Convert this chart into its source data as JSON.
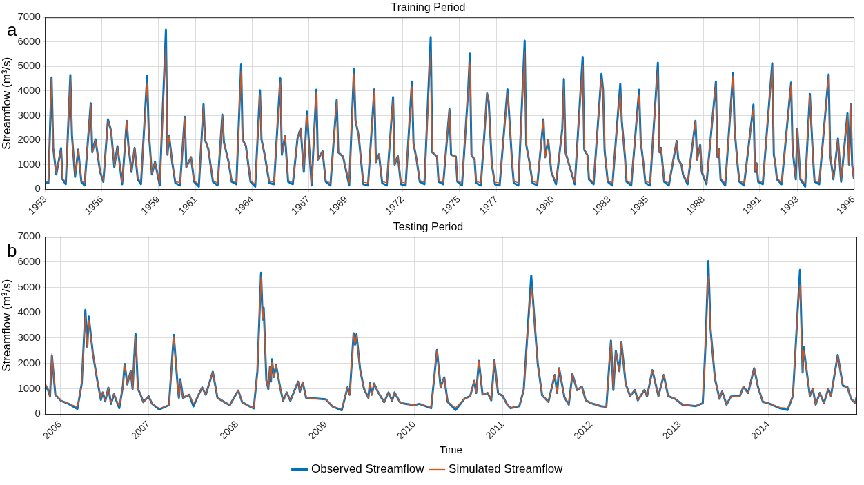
{
  "chart_data": [
    {
      "type": "line",
      "title": "Training Period",
      "ylabel": "Streamflow (m³/s)",
      "annotations": [
        "a"
      ],
      "grid": true,
      "legend": false,
      "line_style": "solid",
      "xlim": [
        "1953-01",
        "1996-01"
      ],
      "ylim": [
        0,
        7000
      ],
      "yticks": [
        0,
        1000,
        2000,
        3000,
        4000,
        5000,
        6000,
        7000
      ],
      "xticks": [
        {
          "value": "1953-01",
          "label": "1953"
        },
        {
          "value": "1956-01",
          "label": "1956"
        },
        {
          "value": "1959-01",
          "label": "1959"
        },
        {
          "value": "1961-01",
          "label": "1961"
        },
        {
          "value": "1964-01",
          "label": "1964"
        },
        {
          "value": "1967-01",
          "label": "1967"
        },
        {
          "value": "1969-01",
          "label": "1969"
        },
        {
          "value": "1972-01",
          "label": "1972"
        },
        {
          "value": "1975-01",
          "label": "1975"
        },
        {
          "value": "1977-01",
          "label": "1977"
        },
        {
          "value": "1980-01",
          "label": "1980"
        },
        {
          "value": "1983-01",
          "label": "1983"
        },
        {
          "value": "1985-01",
          "label": "1985"
        },
        {
          "value": "1988-01",
          "label": "1988"
        },
        {
          "value": "1991-01",
          "label": "1991"
        },
        {
          "value": "1993-01",
          "label": "1993"
        },
        {
          "value": "1996-01",
          "label": "1996"
        }
      ],
      "x": [
        "1953-01",
        "1953-03",
        "1953-05",
        "1953-06",
        "1953-08",
        "1953-11",
        "1953-12",
        "1954-02",
        "1954-05",
        "1954-06",
        "1954-08",
        "1954-10",
        "1954-12",
        "1955-02",
        "1955-06",
        "1955-07",
        "1955-09",
        "1955-12",
        "1956-02",
        "1956-05",
        "1956-07",
        "1956-09",
        "1956-11",
        "1957-02",
        "1957-05",
        "1957-06",
        "1957-08",
        "1957-10",
        "1957-12",
        "1958-02",
        "1958-06",
        "1958-07",
        "1958-09",
        "1958-11",
        "1959-02",
        "1959-06",
        "1959-07",
        "1959-08",
        "1959-10",
        "1959-12",
        "1960-03",
        "1960-06",
        "1960-07",
        "1960-10",
        "1960-12",
        "1961-03",
        "1961-06",
        "1961-07",
        "1961-09",
        "1961-12",
        "1962-03",
        "1962-06",
        "1962-07",
        "1962-10",
        "1962-12",
        "1963-03",
        "1963-06",
        "1963-07",
        "1963-09",
        "1963-12",
        "1964-03",
        "1964-06",
        "1964-07",
        "1964-09",
        "1964-12",
        "1965-03",
        "1965-07",
        "1965-08",
        "1965-10",
        "1965-12",
        "1966-03",
        "1966-06",
        "1966-08",
        "1966-10",
        "1966-12",
        "1967-03",
        "1967-06",
        "1967-07",
        "1967-10",
        "1967-12",
        "1968-03",
        "1968-07",
        "1968-08",
        "1968-11",
        "1969-03",
        "1969-06",
        "1969-07",
        "1969-09",
        "1969-12",
        "1970-03",
        "1970-07",
        "1970-08",
        "1970-10",
        "1970-12",
        "1971-03",
        "1971-07",
        "1971-08",
        "1971-10",
        "1971-12",
        "1972-03",
        "1972-07",
        "1972-08",
        "1972-10",
        "1972-12",
        "1973-03",
        "1973-07",
        "1973-08",
        "1973-11",
        "1973-12",
        "1974-03",
        "1974-07",
        "1974-08",
        "1974-11",
        "1974-12",
        "1975-03",
        "1975-07",
        "1975-08",
        "1975-09",
        "1975-11",
        "1975-12",
        "1976-03",
        "1976-07",
        "1976-08",
        "1976-10",
        "1976-12",
        "1977-03",
        "1977-08",
        "1977-09",
        "1977-11",
        "1977-12",
        "1978-03",
        "1978-07",
        "1978-08",
        "1978-10",
        "1978-12",
        "1979-03",
        "1979-07",
        "1979-08",
        "1979-10",
        "1979-12",
        "1980-03",
        "1980-07",
        "1980-08",
        "1980-09",
        "1980-12",
        "1981-03",
        "1981-08",
        "1981-09",
        "1981-11",
        "1981-12",
        "1982-03",
        "1982-08",
        "1982-09",
        "1982-10",
        "1982-12",
        "1983-03",
        "1983-08",
        "1983-09",
        "1983-11",
        "1983-12",
        "1984-03",
        "1984-08",
        "1984-09",
        "1984-11",
        "1984-12",
        "1985-03",
        "1985-08",
        "1985-09",
        "1985-10",
        "1985-12",
        "1986-03",
        "1986-08",
        "1986-09",
        "1986-11",
        "1986-12",
        "1987-03",
        "1987-08",
        "1987-09",
        "1987-11",
        "1987-12",
        "1988-03",
        "1988-09",
        "1988-10",
        "1988-11",
        "1988-12",
        "1989-03",
        "1989-08",
        "1989-09",
        "1989-11",
        "1989-12",
        "1990-03",
        "1990-09",
        "1990-10",
        "1990-11",
        "1990-12",
        "1991-03",
        "1991-09",
        "1991-10",
        "1991-11",
        "1991-12",
        "1992-03",
        "1992-09",
        "1992-10",
        "1992-12",
        "1993-01",
        "1993-03",
        "1993-06",
        "1993-09",
        "1993-10",
        "1993-11",
        "1993-12",
        "1994-03",
        "1994-09",
        "1994-10",
        "1994-12",
        "1995-03",
        "1995-05",
        "1995-09",
        "1995-10",
        "1995-11",
        "1995-12",
        "1996-01"
      ],
      "series": [
        {
          "color": "#0072bd",
          "values": [
            280,
            250,
            4550,
            1700,
            600,
            1670,
            400,
            200,
            4650,
            2200,
            500,
            1610,
            300,
            150,
            3500,
            1500,
            2030,
            700,
            300,
            2840,
            2370,
            900,
            1750,
            200,
            2780,
            1800,
            700,
            1680,
            400,
            200,
            4610,
            2400,
            600,
            1110,
            150,
            6500,
            1400,
            2180,
            1100,
            250,
            150,
            2950,
            900,
            1300,
            300,
            100,
            3460,
            2000,
            1640,
            300,
            150,
            3040,
            1920,
            1100,
            300,
            200,
            5080,
            2000,
            1770,
            300,
            100,
            4030,
            2020,
            1400,
            250,
            200,
            4520,
            1400,
            2170,
            300,
            200,
            2080,
            2470,
            700,
            3160,
            150,
            4050,
            1200,
            1540,
            300,
            150,
            3630,
            1500,
            1330,
            150,
            4890,
            2800,
            2170,
            200,
            150,
            4070,
            1100,
            1420,
            250,
            150,
            3750,
            1000,
            1350,
            200,
            150,
            4380,
            1860,
            1200,
            300,
            200,
            6200,
            1500,
            1330,
            300,
            200,
            3260,
            1400,
            1330,
            300,
            150,
            4090,
            5520,
            1400,
            1200,
            250,
            150,
            3900,
            3590,
            1000,
            200,
            150,
            4070,
            3090,
            1000,
            250,
            150,
            6050,
            1800,
            1100,
            250,
            150,
            2840,
            1300,
            1990,
            700,
            200,
            2460,
            4490,
            1500,
            850,
            200,
            5390,
            1600,
            1390,
            400,
            200,
            4690,
            4050,
            1570,
            300,
            150,
            4290,
            2740,
            1300,
            300,
            150,
            4050,
            1950,
            900,
            250,
            150,
            5150,
            1500,
            1680,
            300,
            150,
            1960,
            1200,
            1000,
            600,
            200,
            2780,
            1200,
            1800,
            700,
            200,
            4380,
            1300,
            1640,
            400,
            150,
            4740,
            2390,
            900,
            300,
            150,
            3440,
            700,
            1050,
            300,
            200,
            5130,
            1420,
            1000,
            400,
            200,
            4340,
            1600,
            400,
            2450,
            400,
            100,
            3880,
            2560,
            1300,
            300,
            200,
            4670,
            1400,
            400,
            2060,
            300,
            3090,
            1000,
            3460,
            1000,
            460
          ]
        },
        {
          "color": "#d95319",
          "values": [
            320,
            300,
            4500,
            1700,
            650,
            1600,
            450,
            280,
            4550,
            2200,
            550,
            1600,
            350,
            250,
            3450,
            1500,
            2000,
            750,
            350,
            2800,
            2350,
            950,
            1700,
            280,
            2780,
            1800,
            750,
            1680,
            450,
            300,
            4300,
            2400,
            650,
            1100,
            250,
            5870,
            1400,
            2150,
            1100,
            320,
            250,
            2900,
            900,
            1300,
            350,
            200,
            3400,
            2000,
            1640,
            350,
            250,
            3000,
            1900,
            1100,
            350,
            280,
            4800,
            2000,
            1750,
            350,
            200,
            3850,
            2000,
            1400,
            320,
            280,
            4370,
            1400,
            2170,
            350,
            280,
            2080,
            2450,
            750,
            3000,
            250,
            3950,
            1200,
            1540,
            350,
            250,
            3600,
            1500,
            1330,
            250,
            4700,
            2800,
            2170,
            280,
            250,
            4000,
            1100,
            1420,
            320,
            250,
            3700,
            1000,
            1350,
            280,
            250,
            4200,
            1860,
            1200,
            350,
            280,
            5600,
            1500,
            1330,
            350,
            280,
            3250,
            1400,
            1330,
            350,
            250,
            4000,
            5150,
            1400,
            1200,
            320,
            250,
            3900,
            3550,
            1000,
            280,
            250,
            3900,
            3000,
            1000,
            320,
            250,
            5600,
            1800,
            1100,
            320,
            250,
            2800,
            1300,
            2000,
            750,
            280,
            2400,
            4300,
            1500,
            850,
            280,
            5050,
            1600,
            1390,
            450,
            280,
            4500,
            4000,
            1570,
            350,
            250,
            4000,
            2700,
            1300,
            350,
            250,
            3850,
            1950,
            900,
            320,
            250,
            4900,
            1500,
            1680,
            350,
            250,
            1950,
            1200,
            1000,
            650,
            280,
            2750,
            1200,
            1800,
            750,
            280,
            4300,
            1300,
            1640,
            450,
            250,
            4600,
            2390,
            900,
            350,
            250,
            3300,
            750,
            1050,
            350,
            280,
            5000,
            1420,
            1000,
            450,
            280,
            4250,
            1600,
            450,
            2450,
            450,
            200,
            3800,
            2560,
            1300,
            350,
            280,
            4600,
            1400,
            450,
            2060,
            350,
            3000,
            1000,
            3460,
            1000,
            460
          ]
        }
      ]
    },
    {
      "type": "line",
      "title": "Testing Period",
      "xlabel": "Time",
      "ylabel": "Streamflow (m³/s)",
      "annotations": [
        "b"
      ],
      "grid": true,
      "legend": "bottom",
      "line_style": "solid",
      "xlim": [
        "2005-11-01",
        "2014-12-31"
      ],
      "ylim": [
        0,
        7000
      ],
      "yticks": [
        0,
        1000,
        2000,
        3000,
        4000,
        5000,
        6000,
        7000
      ],
      "xticks": [
        {
          "value": "2006-01-01",
          "label": "2006"
        },
        {
          "value": "2007-01-01",
          "label": "2007"
        },
        {
          "value": "2008-01-01",
          "label": "2008"
        },
        {
          "value": "2009-01-01",
          "label": "2009"
        },
        {
          "value": "2010-01-01",
          "label": "2010"
        },
        {
          "value": "2011-01-01",
          "label": "2011"
        },
        {
          "value": "2012-01-01",
          "label": "2012"
        },
        {
          "value": "2013-01-01",
          "label": "2013"
        },
        {
          "value": "2014-01-01",
          "label": "2014"
        }
      ],
      "x": [
        "2005-11-01",
        "2005-11-12",
        "2005-11-20",
        "2005-11-28",
        "2005-12-12",
        "2006-01-04",
        "2006-02-05",
        "2006-03-13",
        "2006-03-31",
        "2006-04-15",
        "2006-04-23",
        "2006-04-29",
        "2006-05-16",
        "2006-06-03",
        "2006-06-18",
        "2006-06-26",
        "2006-07-06",
        "2006-07-19",
        "2006-07-30",
        "2006-08-11",
        "2006-09-02",
        "2006-09-17",
        "2006-09-24",
        "2006-10-05",
        "2006-10-19",
        "2006-10-27",
        "2006-11-08",
        "2006-11-18",
        "2006-11-29",
        "2006-12-10",
        "2007-01-01",
        "2007-01-15",
        "2007-02-14",
        "2007-03-26",
        "2007-04-15",
        "2007-04-22",
        "2007-05-01",
        "2007-05-06",
        "2007-05-12",
        "2007-05-23",
        "2007-06-18",
        "2007-07-05",
        "2007-07-23",
        "2007-08-10",
        "2007-08-25",
        "2007-09-23",
        "2007-10-12",
        "2007-11-10",
        "2007-12-02",
        "2008-01-06",
        "2008-01-22",
        "2008-02-24",
        "2008-03-10",
        "2008-03-25",
        "2008-04-09",
        "2008-04-16",
        "2008-04-20",
        "2008-05-01",
        "2008-05-09",
        "2008-05-16",
        "2008-05-20",
        "2008-05-24",
        "2008-06-01",
        "2008-06-10",
        "2008-06-28",
        "2008-07-09",
        "2008-07-24",
        "2008-08-08",
        "2008-09-09",
        "2008-09-16",
        "2008-09-28",
        "2008-10-12",
        "2009-01-01",
        "2009-01-30",
        "2009-03-08",
        "2009-04-01",
        "2009-04-10",
        "2009-04-26",
        "2009-05-02",
        "2009-05-08",
        "2009-05-23",
        "2009-06-08",
        "2009-06-26",
        "2009-07-02",
        "2009-07-10",
        "2009-07-20",
        "2009-08-04",
        "2009-08-30",
        "2009-09-17",
        "2009-10-02",
        "2009-10-12",
        "2009-11-03",
        "2009-11-20",
        "2010-01-01",
        "2010-01-22",
        "2010-03-12",
        "2010-04-05",
        "2010-04-20",
        "2010-05-05",
        "2010-05-19",
        "2010-06-21",
        "2010-07-27",
        "2010-08-20",
        "2010-09-06",
        "2010-09-14",
        "2010-09-25",
        "2010-10-10",
        "2010-10-31",
        "2010-11-15",
        "2010-11-28",
        "2010-12-13",
        "2011-01-01",
        "2011-01-20",
        "2011-02-03",
        "2011-03-11",
        "2011-03-29",
        "2011-04-29",
        "2011-05-08",
        "2011-05-15",
        "2011-05-26",
        "2011-06-13",
        "2011-07-09",
        "2011-08-04",
        "2011-08-14",
        "2011-08-22",
        "2011-09-13",
        "2011-10-01",
        "2011-10-16",
        "2011-11-04",
        "2011-11-24",
        "2011-12-10",
        "2012-01-01",
        "2012-02-10",
        "2012-03-04",
        "2012-03-23",
        "2012-04-02",
        "2012-04-12",
        "2012-04-27",
        "2012-05-05",
        "2012-05-23",
        "2012-06-10",
        "2012-06-30",
        "2012-07-12",
        "2012-08-08",
        "2012-08-19",
        "2012-09-10",
        "2012-10-05",
        "2012-10-27",
        "2012-11-14",
        "2012-12-13",
        "2013-01-12",
        "2013-03-08",
        "2013-04-06",
        "2013-04-17",
        "2013-04-29",
        "2013-05-08",
        "2013-05-26",
        "2013-06-14",
        "2013-06-25",
        "2013-07-13",
        "2013-07-31",
        "2013-09-06",
        "2013-09-21",
        "2013-10-10",
        "2013-11-04",
        "2013-11-20",
        "2013-12-10",
        "2014-01-01",
        "2014-02-18",
        "2014-03-22",
        "2014-04-13",
        "2014-05-01",
        "2014-05-12",
        "2014-05-23",
        "2014-05-27",
        "2014-06-05",
        "2014-06-22",
        "2014-07-04",
        "2014-07-16",
        "2014-08-02",
        "2014-08-19",
        "2014-09-06",
        "2014-09-17",
        "2014-10-15",
        "2014-11-05",
        "2014-11-24",
        "2014-12-09",
        "2014-12-27",
        "2014-12-31"
      ],
      "series": [
        {
          "name": "Observed Streamflow",
          "color": "#0072bd",
          "values": [
            1100,
            950,
            700,
            2300,
            760,
            525,
            400,
            200,
            1200,
            4110,
            2650,
            3850,
            2390,
            1340,
            560,
            850,
            500,
            1040,
            400,
            780,
            230,
            1110,
            1980,
            1170,
            1690,
            990,
            3170,
            990,
            760,
            470,
            700,
            410,
            180,
            350,
            3130,
            2220,
            1110,
            640,
            1370,
            640,
            760,
            300,
            700,
            1050,
            760,
            1670,
            640,
            470,
            350,
            930,
            470,
            290,
            220,
            1690,
            5580,
            3730,
            4200,
            1340,
            990,
            1870,
            1280,
            2160,
            1460,
            1930,
            990,
            525,
            850,
            525,
            1280,
            875,
            1250,
            640,
            580,
            290,
            150,
            1050,
            760,
            3190,
            2740,
            3150,
            1750,
            990,
            640,
            1220,
            760,
            1200,
            875,
            470,
            850,
            525,
            850,
            470,
            410,
            350,
            400,
            230,
            2530,
            1060,
            1450,
            480,
            160,
            600,
            710,
            1310,
            830,
            2100,
            770,
            830,
            540,
            2120,
            830,
            710,
            370,
            230,
            310,
            945,
            5470,
            4290,
            3360,
            1980,
            740,
            480,
            1540,
            830,
            1810,
            660,
            370,
            1580,
            945,
            1080,
            540,
            430,
            310,
            280,
            2900,
            945,
            2500,
            1690,
            2850,
            1180,
            710,
            945,
            540,
            945,
            690,
            1730,
            710,
            1540,
            710,
            600,
            370,
            310,
            430,
            2670,
            6040,
            3360,
            1410,
            600,
            890,
            370,
            690,
            710,
            1080,
            830,
            1810,
            1060,
            480,
            430,
            230,
            160,
            710,
            3820,
            5690,
            1640,
            2650,
            1980,
            710,
            1000,
            370,
            830,
            430,
            1000,
            710,
            2330,
            1120,
            1060,
            600,
            430,
            660
          ]
        },
        {
          "name": "Simulated Streamflow",
          "color": "#d95319",
          "values": [
            1200,
            1000,
            640,
            2390,
            760,
            525,
            410,
            280,
            1220,
            3900,
            2620,
            3700,
            2390,
            1340,
            600,
            850,
            525,
            1040,
            450,
            780,
            300,
            1110,
            1930,
            1170,
            1690,
            990,
            3050,
            990,
            760,
            470,
            700,
            410,
            220,
            350,
            3050,
            2220,
            1110,
            640,
            1300,
            640,
            760,
            400,
            700,
            1050,
            760,
            1670,
            640,
            470,
            350,
            930,
            470,
            290,
            240,
            1690,
            5400,
            3730,
            4150,
            1340,
            990,
            1870,
            1280,
            2050,
            1460,
            1930,
            990,
            525,
            850,
            525,
            1280,
            875,
            1250,
            640,
            580,
            290,
            200,
            1050,
            760,
            3150,
            2740,
            3100,
            1750,
            990,
            640,
            1220,
            760,
            1200,
            875,
            470,
            850,
            525,
            850,
            470,
            410,
            350,
            410,
            260,
            2500,
            1060,
            1450,
            480,
            250,
            600,
            710,
            1310,
            830,
            2100,
            770,
            830,
            540,
            2120,
            830,
            710,
            370,
            260,
            310,
            945,
            5050,
            4250,
            3360,
            1980,
            740,
            480,
            1540,
            830,
            1810,
            660,
            370,
            1580,
            945,
            1080,
            540,
            430,
            310,
            280,
            2900,
            945,
            2500,
            1690,
            2850,
            1180,
            710,
            945,
            540,
            945,
            690,
            1730,
            710,
            1540,
            710,
            600,
            370,
            310,
            430,
            2670,
            5450,
            3360,
            1410,
            600,
            890,
            370,
            690,
            710,
            1080,
            830,
            1810,
            1060,
            480,
            430,
            260,
            230,
            710,
            3820,
            5100,
            1640,
            2500,
            1980,
            710,
            1000,
            370,
            830,
            430,
            1000,
            710,
            2300,
            1120,
            1060,
            600,
            430,
            660
          ]
        }
      ]
    }
  ]
}
